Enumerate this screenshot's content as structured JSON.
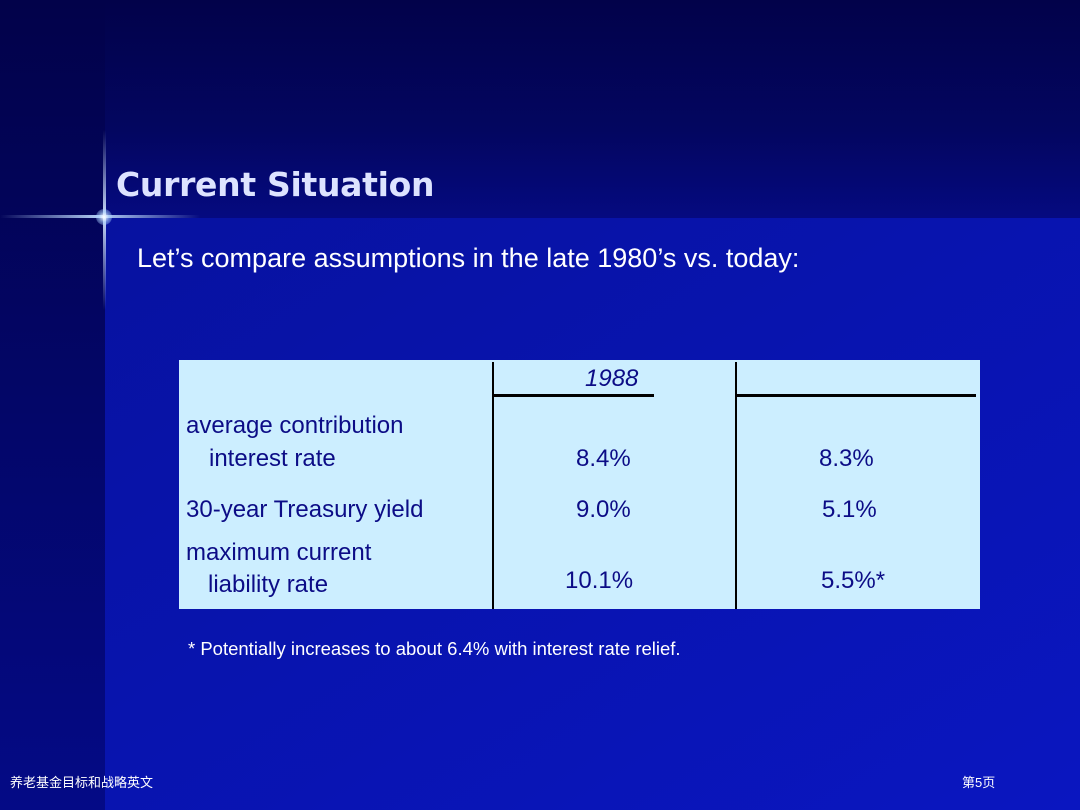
{
  "slide": {
    "title": "Current Situation",
    "subtitle": "Let’s compare assumptions in the late 1980’s vs. today:"
  },
  "table": {
    "header_year": "1988",
    "rows": [
      {
        "label_line1": "average contribution",
        "label_line2": "interest rate",
        "value_1988": "8.4%",
        "value_today": "8.3%"
      },
      {
        "label_line1": "30-year Treasury yield",
        "value_1988": "9.0%",
        "value_today": "5.1%"
      },
      {
        "label_line1": "maximum current",
        "label_line2": "liability rate",
        "value_1988": "10.1%",
        "value_today": "5.5%*"
      }
    ]
  },
  "footnote": "* Potentially increases to about 6.4% with interest rate relief.",
  "footer": {
    "left": "养老基金目标和战略英文",
    "right": "第5页"
  },
  "colors": {
    "background": "#0a0fa6",
    "title": "#dde3ff",
    "table_background": "#cceeff",
    "table_text": "#0c0c86"
  }
}
